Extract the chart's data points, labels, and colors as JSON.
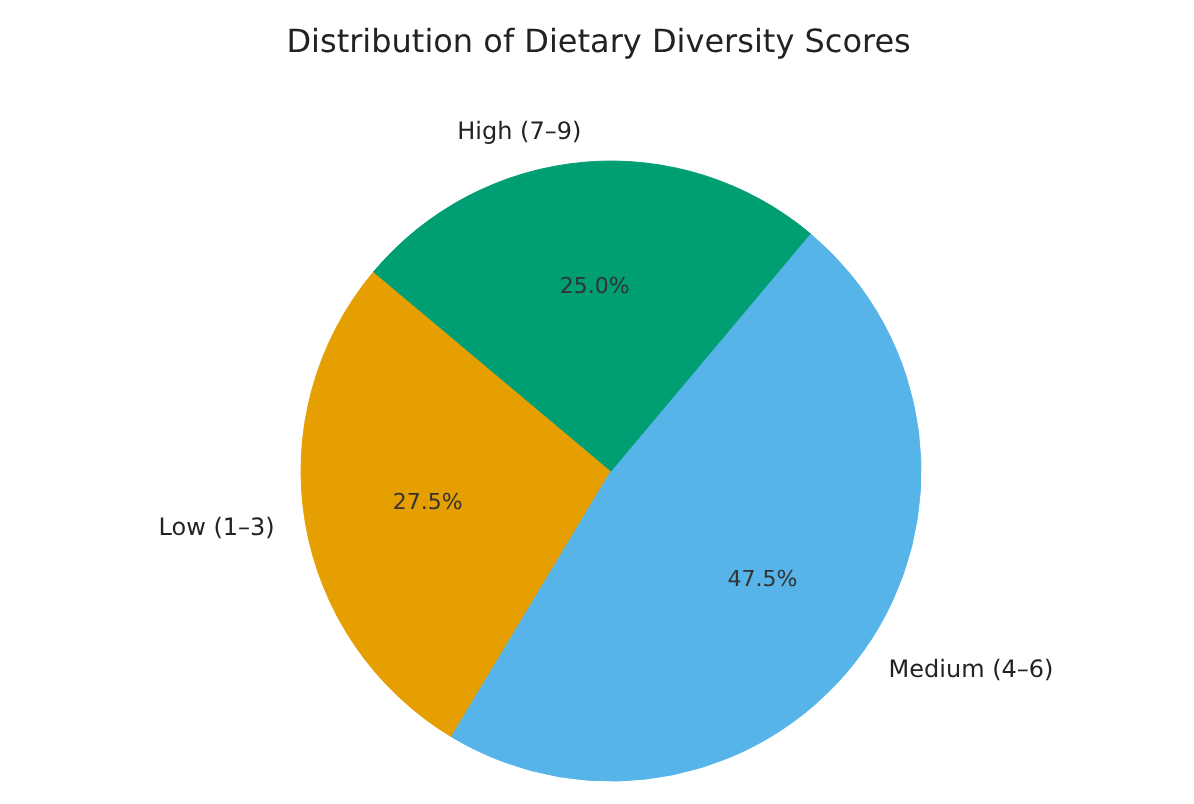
{
  "chart_data": {
    "type": "pie",
    "title": "Distribution of Dietary Diversity Scores",
    "categories": [
      "Low (1–3)",
      "Medium (4–6)",
      "High (7–9)"
    ],
    "values": [
      27.5,
      47.5,
      25.0
    ],
    "colors": [
      "#e69f00",
      "#56b4e9",
      "#009e73"
    ],
    "value_labels": [
      "27.5%",
      "47.5%",
      "25.0%"
    ]
  }
}
